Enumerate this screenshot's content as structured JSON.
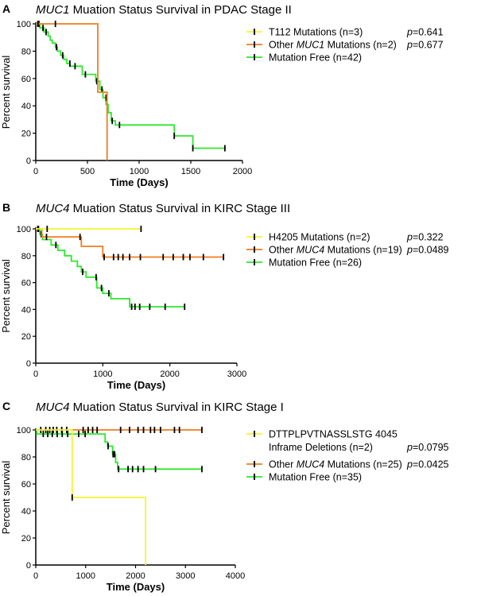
{
  "chart_data": [
    {
      "type": "line",
      "panel": "A",
      "title_gene": "MUC1",
      "title_rest": " Muation Status Survival in PDAC Stage II",
      "xlabel": "Time (Days)",
      "ylabel": "Percent survival",
      "xlim": [
        0,
        2000
      ],
      "ylim": [
        0,
        100
      ],
      "xticks": [
        0,
        500,
        1000,
        1500,
        2000
      ],
      "yticks": [
        0,
        20,
        40,
        60,
        80,
        100
      ],
      "legend_position": "right",
      "series": [
        {
          "name": "T112 Mutations (n=3)",
          "legend_parts": [
            "T112 Mutations (n=3)"
          ],
          "pvalue_label": "p",
          "pvalue": "=0.641",
          "color": "#f5f530",
          "steps": [
            [
              0,
              100
            ],
            [
              0,
              100
            ]
          ],
          "censors": [
            [
              20,
              100
            ],
            [
              190,
              100
            ]
          ]
        },
        {
          "name": "Other MUC1 Mutations (n=2)",
          "legend_parts": [
            "Other ",
            "MUC1",
            " Mutations (n=2)"
          ],
          "pvalue_label": "p",
          "pvalue": "=0.677",
          "color": "#f07d1e",
          "steps": [
            [
              0,
              100
            ],
            [
              600,
              100
            ],
            [
              600,
              50
            ],
            [
              690,
              50
            ],
            [
              690,
              0
            ]
          ],
          "censors": []
        },
        {
          "name": "Mutation Free (n=42)",
          "legend_parts": [
            "Mutation Free (n=42)"
          ],
          "pvalue_label": "",
          "pvalue": "",
          "color": "#2ee82e",
          "steps": [
            [
              0,
              100
            ],
            [
              40,
              100
            ],
            [
              40,
              97
            ],
            [
              80,
              97
            ],
            [
              80,
              94
            ],
            [
              120,
              94
            ],
            [
              120,
              91
            ],
            [
              140,
              91
            ],
            [
              140,
              88
            ],
            [
              160,
              88
            ],
            [
              160,
              86
            ],
            [
              190,
              86
            ],
            [
              190,
              83
            ],
            [
              210,
              83
            ],
            [
              210,
              80
            ],
            [
              240,
              80
            ],
            [
              240,
              77
            ],
            [
              270,
              77
            ],
            [
              270,
              74
            ],
            [
              300,
              74
            ],
            [
              300,
              71
            ],
            [
              330,
              71
            ],
            [
              330,
              69
            ],
            [
              450,
              69
            ],
            [
              450,
              63
            ],
            [
              580,
              63
            ],
            [
              580,
              58
            ],
            [
              620,
              58
            ],
            [
              620,
              52
            ],
            [
              650,
              52
            ],
            [
              650,
              46
            ],
            [
              680,
              46
            ],
            [
              680,
              41
            ],
            [
              700,
              41
            ],
            [
              700,
              35
            ],
            [
              730,
              35
            ],
            [
              730,
              29
            ],
            [
              770,
              29
            ],
            [
              770,
              26
            ],
            [
              1340,
              26
            ],
            [
              1340,
              18
            ],
            [
              1520,
              18
            ],
            [
              1520,
              9
            ],
            [
              1830,
              9
            ]
          ],
          "censors": [
            [
              30,
              100
            ],
            [
              70,
              97
            ],
            [
              100,
              94
            ],
            [
              200,
              83
            ],
            [
              260,
              77
            ],
            [
              330,
              71
            ],
            [
              380,
              69
            ],
            [
              480,
              63
            ],
            [
              590,
              58
            ],
            [
              640,
              52
            ],
            [
              680,
              46
            ],
            [
              740,
              29
            ],
            [
              810,
              26
            ],
            [
              1340,
              18
            ],
            [
              1520,
              9
            ],
            [
              1830,
              9
            ]
          ]
        }
      ]
    },
    {
      "type": "line",
      "panel": "B",
      "title_gene": "MUC4",
      "title_rest": " Muation Status Survival in KIRC Stage III",
      "xlabel": "Time (Days)",
      "ylabel": "Percent survival",
      "xlim": [
        0,
        3000
      ],
      "ylim": [
        0,
        100
      ],
      "xticks": [
        0,
        1000,
        2000,
        3000
      ],
      "yticks": [
        0,
        20,
        40,
        60,
        80,
        100
      ],
      "legend_position": "right",
      "series": [
        {
          "name": "H4205 Mutations (n=2)",
          "legend_parts": [
            "H4205 Mutations (n=2)"
          ],
          "pvalue_label": "p",
          "pvalue": "=0.322",
          "color": "#f5f530",
          "steps": [
            [
              0,
              100
            ],
            [
              1570,
              100
            ]
          ],
          "censors": [
            [
              170,
              100
            ],
            [
              1570,
              100
            ]
          ]
        },
        {
          "name": "Other MUC4 Mutations (n=19)",
          "legend_parts": [
            "Other ",
            "MUC4",
            " Mutations (n=19)"
          ],
          "pvalue_label": "p",
          "pvalue": "=0.0489",
          "color": "#f07d1e",
          "steps": [
            [
              0,
              100
            ],
            [
              90,
              100
            ],
            [
              90,
              94
            ],
            [
              680,
              94
            ],
            [
              680,
              87
            ],
            [
              1000,
              87
            ],
            [
              1000,
              79
            ],
            [
              2800,
              79
            ]
          ],
          "censors": [
            [
              40,
              100
            ],
            [
              160,
              94
            ],
            [
              660,
              94
            ],
            [
              1020,
              79
            ],
            [
              1160,
              79
            ],
            [
              1230,
              79
            ],
            [
              1300,
              79
            ],
            [
              1400,
              79
            ],
            [
              1560,
              79
            ],
            [
              1900,
              79
            ],
            [
              2050,
              79
            ],
            [
              2200,
              79
            ],
            [
              2300,
              79
            ],
            [
              2500,
              79
            ],
            [
              2800,
              79
            ]
          ]
        },
        {
          "name": "Mutation Free (n=26)",
          "legend_parts": [
            "Mutation Free (n=26)"
          ],
          "pvalue_label": "",
          "pvalue": "",
          "color": "#2ee82e",
          "steps": [
            [
              0,
              100
            ],
            [
              60,
              100
            ],
            [
              60,
              96
            ],
            [
              100,
              96
            ],
            [
              100,
              92
            ],
            [
              230,
              92
            ],
            [
              230,
              88
            ],
            [
              330,
              88
            ],
            [
              330,
              84
            ],
            [
              430,
              84
            ],
            [
              430,
              80
            ],
            [
              530,
              80
            ],
            [
              530,
              76
            ],
            [
              620,
              76
            ],
            [
              620,
              72
            ],
            [
              680,
              72
            ],
            [
              680,
              68
            ],
            [
              750,
              68
            ],
            [
              750,
              64
            ],
            [
              910,
              64
            ],
            [
              910,
              56
            ],
            [
              1000,
              56
            ],
            [
              1000,
              52
            ],
            [
              1120,
              52
            ],
            [
              1120,
              48
            ],
            [
              1400,
              48
            ],
            [
              1400,
              42
            ],
            [
              2220,
              42
            ]
          ],
          "censors": [
            [
              30,
              100
            ],
            [
              80,
              96
            ],
            [
              300,
              88
            ],
            [
              700,
              68
            ],
            [
              900,
              64
            ],
            [
              980,
              56
            ],
            [
              1090,
              52
            ],
            [
              1430,
              42
            ],
            [
              1480,
              42
            ],
            [
              1550,
              42
            ],
            [
              1700,
              42
            ],
            [
              1930,
              42
            ],
            [
              2220,
              42
            ]
          ]
        }
      ]
    },
    {
      "type": "line",
      "panel": "C",
      "title_gene": "MUC4",
      "title_rest": " Muation Status Survival in KIRC Stage I",
      "xlabel": "Time (Days)",
      "ylabel": "Percent survival",
      "xlim": [
        0,
        4000
      ],
      "ylim": [
        0,
        100
      ],
      "xticks": [
        0,
        1000,
        2000,
        3000,
        4000
      ],
      "yticks": [
        0,
        20,
        40,
        60,
        80,
        100
      ],
      "legend_position": "right",
      "series": [
        {
          "name": "DTTPLPVTNASSLSTG 4045 Inframe Deletions (n=2)",
          "legend_parts": [
            "DTTPLPVTNASSLSTG 4045"
          ],
          "legend_line2": "Inframe Deletions (n=2)",
          "pvalue_label": "p",
          "pvalue": "=0.0795",
          "color": "#f5f530",
          "steps": [
            [
              0,
              100
            ],
            [
              730,
              100
            ],
            [
              730,
              50
            ],
            [
              2200,
              50
            ],
            [
              2200,
              0
            ]
          ],
          "censors": [
            [
              730,
              50
            ]
          ]
        },
        {
          "name": "Other MUC4 Mutations (n=25)",
          "legend_parts": [
            "Other ",
            "MUC4",
            " Mutations (n=25)"
          ],
          "pvalue_label": "p",
          "pvalue": "=0.0425",
          "color": "#f07d1e",
          "steps": [
            [
              0,
              100
            ],
            [
              3330,
              100
            ]
          ],
          "censors": [
            [
              100,
              100
            ],
            [
              200,
              100
            ],
            [
              280,
              100
            ],
            [
              350,
              100
            ],
            [
              420,
              100
            ],
            [
              520,
              100
            ],
            [
              620,
              100
            ],
            [
              950,
              100
            ],
            [
              1050,
              100
            ],
            [
              1140,
              100
            ],
            [
              1230,
              100
            ],
            [
              1700,
              100
            ],
            [
              1880,
              100
            ],
            [
              2050,
              100
            ],
            [
              2160,
              100
            ],
            [
              2300,
              100
            ],
            [
              2380,
              100
            ],
            [
              2500,
              100
            ],
            [
              2780,
              100
            ],
            [
              2880,
              100
            ],
            [
              3330,
              100
            ]
          ]
        },
        {
          "name": "Mutation Free (n=35)",
          "legend_parts": [
            "Mutation Free (n=35)"
          ],
          "pvalue_label": "",
          "pvalue": "",
          "color": "#2ee82e",
          "steps": [
            [
              0,
              100
            ],
            [
              20,
              100
            ],
            [
              20,
              97
            ],
            [
              1390,
              97
            ],
            [
              1390,
              91
            ],
            [
              1440,
              91
            ],
            [
              1440,
              88
            ],
            [
              1540,
              88
            ],
            [
              1540,
              82
            ],
            [
              1600,
              82
            ],
            [
              1600,
              76
            ],
            [
              1640,
              76
            ],
            [
              1640,
              71
            ],
            [
              3330,
              71
            ]
          ],
          "censors": [
            [
              150,
              97
            ],
            [
              240,
              97
            ],
            [
              330,
              97
            ],
            [
              430,
              97
            ],
            [
              530,
              97
            ],
            [
              640,
              97
            ],
            [
              860,
              97
            ],
            [
              990,
              97
            ],
            [
              1450,
              88
            ],
            [
              1550,
              82
            ],
            [
              1580,
              82
            ],
            [
              1660,
              71
            ],
            [
              1850,
              71
            ],
            [
              1940,
              71
            ],
            [
              2050,
              71
            ],
            [
              2160,
              71
            ],
            [
              2400,
              71
            ],
            [
              3330,
              71
            ]
          ]
        }
      ]
    }
  ]
}
